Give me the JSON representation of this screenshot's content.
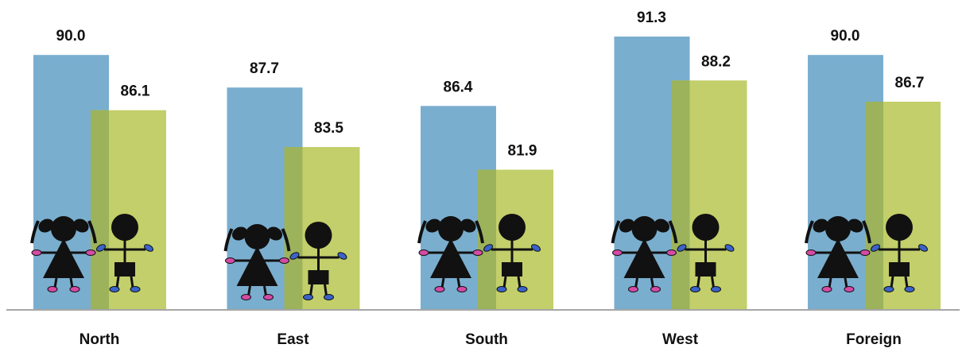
{
  "chart_data": {
    "type": "bar",
    "title": "",
    "xlabel": "",
    "ylabel": "",
    "categories": [
      "North",
      "East",
      "South",
      "West",
      "Foreign"
    ],
    "series": [
      {
        "values": [
          90.0,
          87.7,
          86.4,
          91.3,
          90.0
        ],
        "color": "#7aaecf",
        "icon": "girl-figure-icon"
      },
      {
        "values": [
          86.1,
          83.5,
          81.9,
          88.2,
          86.7
        ],
        "color": "#c3cf6a",
        "icon": "boy-figure-icon"
      }
    ],
    "value_labels": [
      [
        "90.0",
        "87.7",
        "86.4",
        "91.3",
        "90.0"
      ],
      [
        "86.1",
        "83.5",
        "81.9",
        "88.2",
        "86.7"
      ]
    ],
    "ylim": [
      72,
      92.3
    ],
    "y_axis_visible": false,
    "grid": false,
    "legend": "none",
    "overlap_color": "#9cb35c",
    "baseline_color": "#a6a6a6"
  }
}
